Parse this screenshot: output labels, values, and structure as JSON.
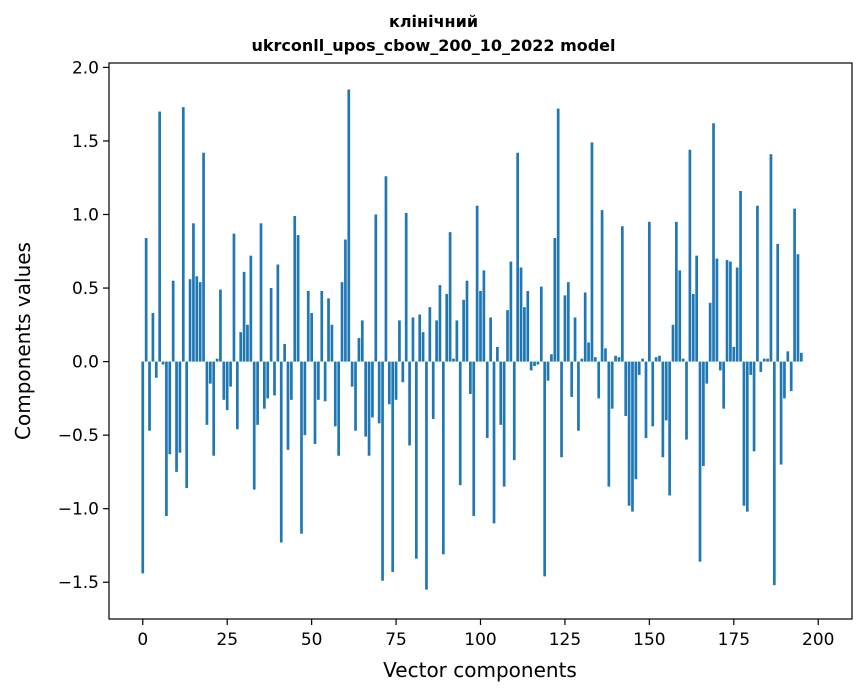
{
  "chart_data": {
    "type": "bar",
    "title_line1": "клінічний",
    "title_line2": "ukrconll_upos_cbow_200_10_2022 model",
    "xlabel": "Vector components",
    "ylabel": "Components values",
    "xlim": [
      -10,
      210
    ],
    "ylim": [
      -1.75,
      2.03
    ],
    "xticks": [
      0,
      25,
      50,
      75,
      100,
      125,
      150,
      175,
      200
    ],
    "yticks": [
      -1.5,
      -1.0,
      -0.5,
      0.0,
      0.5,
      1.0,
      1.5,
      2.0
    ],
    "ytick_labels": [
      "−1.5",
      "−1.0",
      "−0.5",
      "0.0",
      "0.5",
      "1.0",
      "1.5",
      "2.0"
    ],
    "bar_color": "#1f77b4",
    "values": [
      -1.44,
      0.84,
      -0.47,
      0.33,
      -0.11,
      1.7,
      -0.02,
      -1.05,
      -0.63,
      0.55,
      -0.75,
      -0.62,
      1.73,
      -0.86,
      0.56,
      0.94,
      0.58,
      0.54,
      1.42,
      -0.43,
      -0.15,
      -0.64,
      0.02,
      0.49,
      -0.26,
      -0.33,
      -0.17,
      0.87,
      -0.46,
      0.2,
      0.61,
      0.25,
      0.72,
      -0.87,
      -0.43,
      0.94,
      -0.32,
      -0.25,
      0.5,
      -0.23,
      0.66,
      -1.23,
      0.12,
      -0.6,
      -0.26,
      0.99,
      0.86,
      -1.17,
      -0.5,
      0.48,
      0.33,
      -0.56,
      -0.26,
      0.48,
      -0.27,
      0.43,
      0.25,
      -0.44,
      -0.64,
      0.54,
      0.83,
      1.85,
      -0.17,
      -0.47,
      0.16,
      0.28,
      -0.51,
      -0.64,
      -0.38,
      1.0,
      -0.42,
      -1.49,
      1.26,
      -0.29,
      -1.43,
      -0.26,
      0.28,
      -0.14,
      1.01,
      -0.57,
      0.3,
      -1.34,
      0.32,
      0.2,
      -1.55,
      0.37,
      -0.39,
      0.28,
      0.52,
      -1.31,
      0.46,
      0.88,
      0.02,
      0.28,
      -0.84,
      0.42,
      0.55,
      -0.22,
      -1.05,
      1.06,
      0.48,
      0.62,
      -0.52,
      0.3,
      -1.1,
      0.1,
      -0.43,
      -0.85,
      0.35,
      0.68,
      -0.67,
      1.42,
      0.64,
      0.37,
      0.48,
      -0.06,
      -0.03,
      -0.02,
      0.51,
      -1.46,
      -0.13,
      0.05,
      0.84,
      1.72,
      -0.65,
      0.45,
      0.54,
      -0.24,
      0.3,
      -0.47,
      0.02,
      0.47,
      0.13,
      1.49,
      0.03,
      -0.25,
      1.03,
      0.09,
      -0.85,
      -0.32,
      0.04,
      0.03,
      0.92,
      -0.37,
      -0.98,
      -1.02,
      -0.8,
      -0.09,
      0.02,
      -0.52,
      0.95,
      -0.44,
      0.03,
      0.04,
      -0.65,
      -0.4,
      -0.91,
      0.25,
      0.95,
      0.62,
      0.02,
      -0.53,
      1.44,
      0.46,
      0.72,
      -1.36,
      -0.71,
      -0.15,
      0.4,
      1.62,
      0.7,
      -0.06,
      -0.32,
      0.69,
      0.68,
      0.1,
      0.64,
      1.16,
      -0.98,
      -1.02,
      -0.09,
      -0.61,
      1.06,
      -0.07,
      0.02,
      0.02,
      1.41,
      -1.52,
      0.8,
      -0.7,
      -0.25,
      0.07,
      -0.2,
      1.04,
      0.73,
      0.06
    ]
  }
}
